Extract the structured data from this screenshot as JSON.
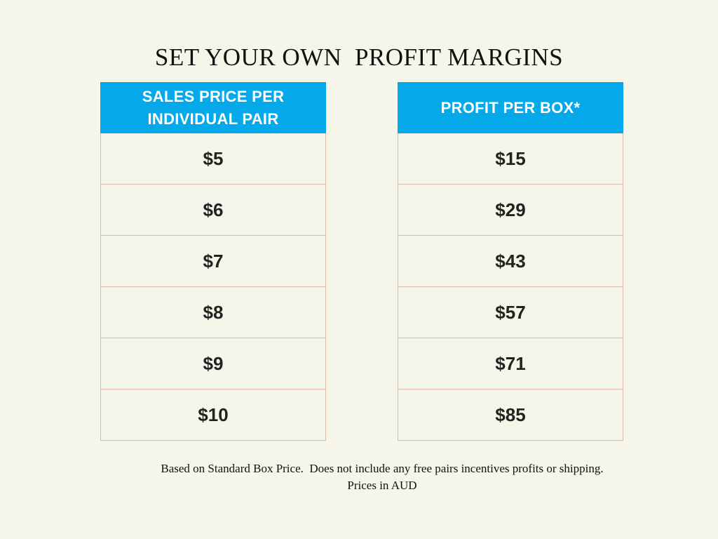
{
  "title": "SET YOUR OWN  PROFIT MARGINS",
  "colors": {
    "background": "#f5f5ea",
    "header_fill": "#05a8e8",
    "cell_border": "#e2b9a6"
  },
  "left_table": {
    "header_line1": "SALES PRICE PER",
    "header_line2": "INDIVIDUAL PAIR",
    "rows": [
      "$5",
      "$6",
      "$7",
      "$8",
      "$9",
      "$10"
    ]
  },
  "right_table": {
    "header": "PROFIT PER BOX*",
    "rows": [
      "$15",
      "$29",
      "$43",
      "$57",
      "$71",
      "$85"
    ]
  },
  "footnote": {
    "line1": "Based on Standard Box Price.  Does not include any free pairs incentives profits or shipping.",
    "line2": "Prices in AUD"
  }
}
